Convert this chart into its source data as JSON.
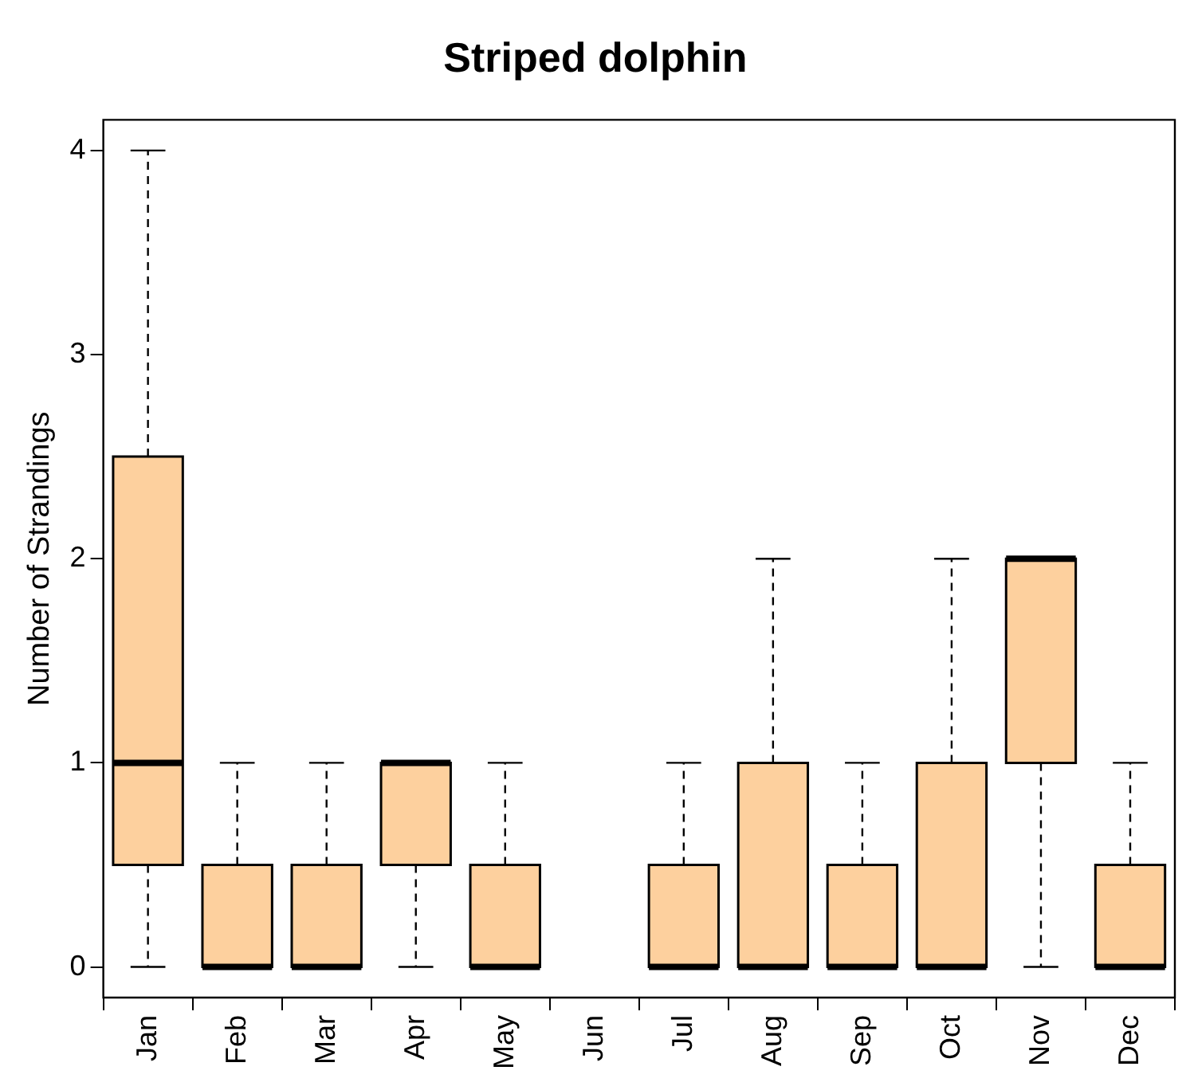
{
  "chart_data": {
    "type": "box",
    "title": "Striped dolphin",
    "ylabel": "Number of Strandings",
    "categories": [
      "Jan",
      "Feb",
      "Mar",
      "Apr",
      "May",
      "Jun",
      "Jul",
      "Aug",
      "Sep",
      "Oct",
      "Nov",
      "Dec"
    ],
    "color": "#fdd09e",
    "boxes": [
      {
        "low": 0,
        "q1": 0.5,
        "median": 1,
        "q3": 2.5,
        "high": 4
      },
      {
        "low": 0,
        "q1": 0,
        "median": 0,
        "q3": 0.5,
        "high": 1
      },
      {
        "low": 0,
        "q1": 0,
        "median": 0,
        "q3": 0.5,
        "high": 1
      },
      {
        "low": 0,
        "q1": 0.5,
        "median": 1,
        "q3": 1,
        "high": 1
      },
      {
        "low": 0,
        "q1": 0,
        "median": 0,
        "q3": 0.5,
        "high": 1
      },
      null,
      {
        "low": 0,
        "q1": 0,
        "median": 0,
        "q3": 0.5,
        "high": 1
      },
      {
        "low": 0,
        "q1": 0,
        "median": 0,
        "q3": 1,
        "high": 2
      },
      {
        "low": 0,
        "q1": 0,
        "median": 0,
        "q3": 0.5,
        "high": 1
      },
      {
        "low": 0,
        "q1": 0,
        "median": 0,
        "q3": 1,
        "high": 2
      },
      {
        "low": 0,
        "q1": 1,
        "median": 2,
        "q3": 2,
        "high": 2
      },
      {
        "low": 0,
        "q1": 0,
        "median": 0,
        "q3": 0.5,
        "high": 1
      }
    ],
    "ylim": [
      -0.15,
      4.15
    ],
    "yticks": [
      0,
      1,
      2,
      3,
      4
    ]
  }
}
